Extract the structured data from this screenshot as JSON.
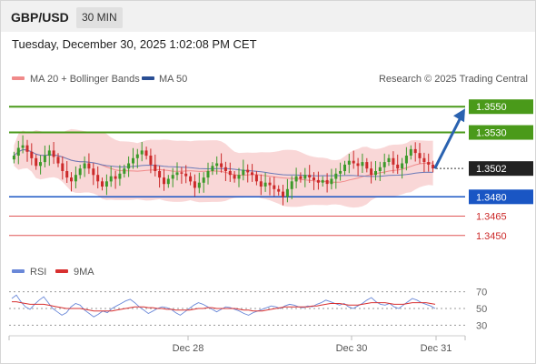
{
  "header": {
    "pair": "GBP/USD",
    "timeframe": "30 MIN"
  },
  "datetime": "Tuesday, December 30, 2025 1:02:08 PM CET",
  "legend": {
    "ma20_label": "MA 20 + Bollinger Bands",
    "ma50_label": "MA 50",
    "copyright": "Research © 2025 Trading Central"
  },
  "rsi_legend": {
    "rsi_label": "RSI",
    "ma_label": "9MA"
  },
  "colors": {
    "green_level": "#4a9a1a",
    "blue_level": "#1a56c4",
    "red_level": "#e05555",
    "candle_up": "#3c9a2a",
    "candle_down": "#cc2a2a",
    "bollinger": "#f8d0d0",
    "ma50": "#6a7ab8",
    "rsi_line": "#6a88d8",
    "rsi_ma": "#d83030",
    "arrow": "#2a62b0"
  },
  "chart_data": [
    {
      "type": "candlestick",
      "title": "GBP/USD 30 MIN",
      "x_ticks": [
        "Dec 28",
        "Dec 30",
        "Dec 31"
      ],
      "ylim": [
        1.3435,
        1.3565
      ],
      "last_price": 1.3502,
      "levels": [
        {
          "value": 1.355,
          "label": "1.3550",
          "role": "resistance"
        },
        {
          "value": 1.353,
          "label": "1.3530",
          "role": "resistance"
        },
        {
          "value": 1.3502,
          "label": "1.3502",
          "role": "last"
        },
        {
          "value": 1.348,
          "label": "1.3480",
          "role": "pivot"
        },
        {
          "value": 1.3465,
          "label": "1.3465",
          "role": "support"
        },
        {
          "value": 1.345,
          "label": "1.3450",
          "role": "support"
        }
      ],
      "projection": {
        "from": 1.3502,
        "to": 1.355,
        "direction": "up"
      },
      "candles_close": [
        1.3512,
        1.3518,
        1.352,
        1.3515,
        1.351,
        1.3504,
        1.3507,
        1.3512,
        1.3516,
        1.3511,
        1.3506,
        1.35,
        1.3495,
        1.3492,
        1.3497,
        1.3502,
        1.3506,
        1.3502,
        1.3497,
        1.3492,
        1.3488,
        1.3492,
        1.3496,
        1.3494,
        1.3498,
        1.3502,
        1.3506,
        1.351,
        1.3513,
        1.3516,
        1.3512,
        1.3505,
        1.35,
        1.3495,
        1.349,
        1.3494,
        1.3497,
        1.3499,
        1.3498,
        1.3496,
        1.3492,
        1.3487,
        1.3491,
        1.3495,
        1.35,
        1.3504,
        1.3506,
        1.3503,
        1.35,
        1.3497,
        1.3494,
        1.3497,
        1.3501,
        1.3499,
        1.3497,
        1.3492,
        1.3488,
        1.3491,
        1.3489,
        1.3486,
        1.3484,
        1.348,
        1.3486,
        1.3492,
        1.3496,
        1.3494,
        1.3497,
        1.3495,
        1.3493,
        1.3491,
        1.3493,
        1.349,
        1.3494,
        1.3498,
        1.35,
        1.3505,
        1.3508,
        1.3506,
        1.3504,
        1.3507,
        1.3502,
        1.3497,
        1.35,
        1.3503,
        1.3507,
        1.351,
        1.3505,
        1.3502,
        1.3506,
        1.3512,
        1.3517,
        1.3514,
        1.351,
        1.3507,
        1.3505,
        1.3502
      ]
    },
    {
      "type": "line",
      "title": "RSI",
      "y_ticks": [
        70,
        50,
        30
      ],
      "ylim": [
        25,
        75
      ],
      "series": [
        {
          "name": "RSI",
          "values": [
            62,
            66,
            58,
            52,
            49,
            55,
            60,
            64,
            57,
            50,
            46,
            42,
            45,
            52,
            56,
            54,
            48,
            44,
            40,
            43,
            47,
            45,
            50,
            53,
            56,
            59,
            61,
            57,
            52,
            48,
            44,
            47,
            50,
            52,
            51,
            49,
            45,
            42,
            46,
            50,
            54,
            57,
            55,
            52,
            49,
            46,
            49,
            52,
            51,
            49,
            47,
            44,
            42,
            45,
            47,
            49,
            51,
            53,
            52,
            50,
            53,
            55,
            54,
            52,
            51,
            53,
            52,
            55,
            57,
            60,
            58,
            56,
            54,
            56,
            52,
            50,
            53,
            56,
            60,
            63,
            58,
            55,
            54,
            56,
            52,
            50,
            54,
            58,
            62,
            60,
            57,
            55,
            53,
            50
          ]
        },
        {
          "name": "9MA",
          "values": [
            58,
            58,
            57,
            56,
            55,
            55,
            55,
            55,
            54,
            53,
            52,
            51,
            50,
            50,
            50,
            50,
            49,
            48,
            47,
            47,
            47,
            47,
            47,
            48,
            49,
            50,
            51,
            52,
            52,
            52,
            51,
            51,
            50,
            50,
            49,
            49,
            48,
            48,
            48,
            48,
            49,
            50,
            50,
            51,
            51,
            50,
            50,
            50,
            50,
            50,
            49,
            48,
            48,
            47,
            47,
            47,
            48,
            49,
            50,
            51,
            52,
            52,
            52,
            52,
            52,
            52,
            53,
            53,
            54,
            55,
            56,
            56,
            56,
            55,
            54,
            54,
            54,
            55,
            56,
            57,
            57,
            57,
            57,
            56,
            55,
            55,
            55,
            56,
            57,
            57,
            57,
            57,
            56,
            55
          ]
        }
      ]
    }
  ]
}
